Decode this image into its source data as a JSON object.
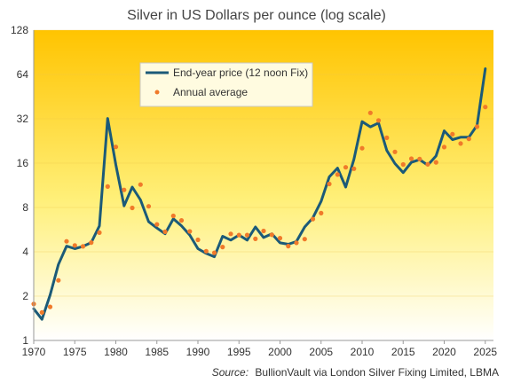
{
  "chart_data": {
    "type": "line",
    "title": "Silver in US Dollars per ounce (log scale)",
    "scale": "log2",
    "ylim": [
      1,
      128
    ],
    "xlim": [
      1970,
      2026
    ],
    "grid": false,
    "legend_position": "top-center",
    "y_ticks": [
      "1",
      "2",
      "4",
      "8",
      "16",
      "32",
      "64",
      "128"
    ],
    "y_tick_values": [
      1,
      2,
      4,
      8,
      16,
      32,
      64,
      128
    ],
    "x_ticks": [
      "1970",
      "1975",
      "1980",
      "1985",
      "1990",
      "1995",
      "2000",
      "2005",
      "2010",
      "2015",
      "2020",
      "2025"
    ],
    "x_tick_values": [
      1970,
      1975,
      1980,
      1985,
      1990,
      1995,
      2000,
      2005,
      2010,
      2015,
      2020,
      2025
    ],
    "series": [
      {
        "name": "End-year price (12 noon Fix)",
        "style": "line",
        "color": "#1b5a78",
        "x": [
          1970,
          1971,
          1972,
          1973,
          1974,
          1975,
          1976,
          1977,
          1978,
          1979,
          1980,
          1981,
          1982,
          1983,
          1984,
          1985,
          1986,
          1987,
          1988,
          1989,
          1990,
          1991,
          1992,
          1993,
          1994,
          1995,
          1996,
          1997,
          1998,
          1999,
          2000,
          2001,
          2002,
          2003,
          2004,
          2005,
          2006,
          2007,
          2008,
          2009,
          2010,
          2011,
          2012,
          2013,
          2014,
          2015,
          2016,
          2017,
          2018,
          2019,
          2020,
          2021,
          2022,
          2023,
          2024,
          2025
        ],
        "values": [
          1.64,
          1.39,
          2.04,
          3.28,
          4.37,
          4.2,
          4.35,
          4.62,
          6.0,
          32.2,
          15.6,
          8.2,
          11.0,
          9.0,
          6.4,
          5.8,
          5.3,
          6.7,
          6.0,
          5.2,
          4.2,
          3.9,
          3.7,
          5.1,
          4.8,
          5.2,
          4.8,
          5.9,
          5.0,
          5.3,
          4.6,
          4.5,
          4.7,
          5.9,
          6.8,
          8.8,
          12.9,
          14.8,
          11.0,
          17.0,
          30.6,
          28.2,
          30.0,
          19.5,
          15.9,
          13.8,
          16.2,
          16.9,
          15.5,
          17.9,
          26.5,
          23.1,
          24.0,
          24.0,
          28.9,
          70.0
        ]
      },
      {
        "name": "Annual average",
        "style": "dots",
        "color": "#f07a2a",
        "x": [
          1970,
          1971,
          1972,
          1973,
          1974,
          1975,
          1976,
          1977,
          1978,
          1979,
          1980,
          1981,
          1982,
          1983,
          1984,
          1985,
          1986,
          1987,
          1988,
          1989,
          1990,
          1991,
          1992,
          1993,
          1994,
          1995,
          1996,
          1997,
          1998,
          1999,
          2000,
          2001,
          2002,
          2003,
          2004,
          2005,
          2006,
          2007,
          2008,
          2009,
          2010,
          2011,
          2012,
          2013,
          2014,
          2015,
          2016,
          2017,
          2018,
          2019,
          2020,
          2021,
          2022,
          2023,
          2024,
          2025
        ],
        "values": [
          1.77,
          1.55,
          1.69,
          2.56,
          4.71,
          4.42,
          4.35,
          4.62,
          5.4,
          11.09,
          20.63,
          10.52,
          7.95,
          11.44,
          8.14,
          6.14,
          5.47,
          7.01,
          6.53,
          5.5,
          4.82,
          4.04,
          3.94,
          4.31,
          5.29,
          5.2,
          5.2,
          4.9,
          5.54,
          5.22,
          4.95,
          4.37,
          4.6,
          4.88,
          6.67,
          7.32,
          11.55,
          13.38,
          14.99,
          14.67,
          20.19,
          35.12,
          31.15,
          23.79,
          19.08,
          15.68,
          17.14,
          17.05,
          15.71,
          16.21,
          20.55,
          25.14,
          21.73,
          23.35,
          28.27,
          38.5
        ]
      }
    ],
    "annotation": {
      "source_label": "Source:",
      "source_text": "BullionVault via London Silver Fixing Limited, LBMA"
    }
  }
}
